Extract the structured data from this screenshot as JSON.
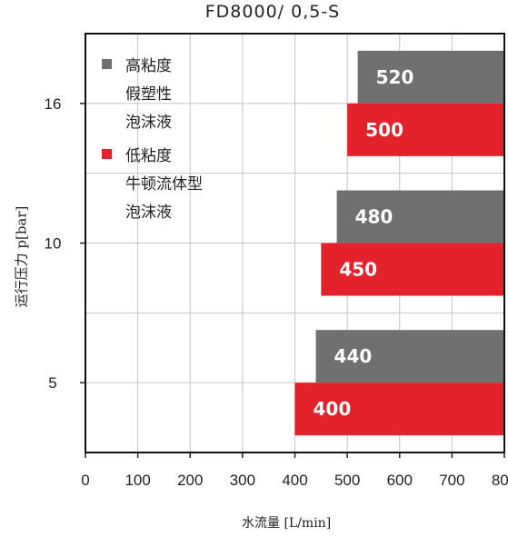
{
  "chart_data": {
    "type": "bar",
    "orientation": "horizontal",
    "title": "FD8000/ 0,5-S",
    "xlabel": "水流量 [L/min]",
    "ylabel": "运行压力 p[bar]",
    "categories": [
      "16",
      "10",
      "5"
    ],
    "xlim": [
      0,
      800
    ],
    "xticks": [
      "0",
      "100",
      "200",
      "300",
      "400",
      "500",
      "600",
      "700",
      "800"
    ],
    "grid": true,
    "legend_position": "top-left",
    "series": [
      {
        "name": "高粘度假塑性泡沫液",
        "legend_lines": [
          "高粘度",
          "假塑性",
          "泡沫液"
        ],
        "color": "#707070",
        "values": [
          520,
          480,
          440
        ]
      },
      {
        "name": "低粘度牛顿流体型泡沫液",
        "legend_lines": [
          "低粘度",
          "牛顿流体型",
          "泡沫液"
        ],
        "color": "#e3222b",
        "values": [
          500,
          450,
          400
        ]
      }
    ]
  }
}
